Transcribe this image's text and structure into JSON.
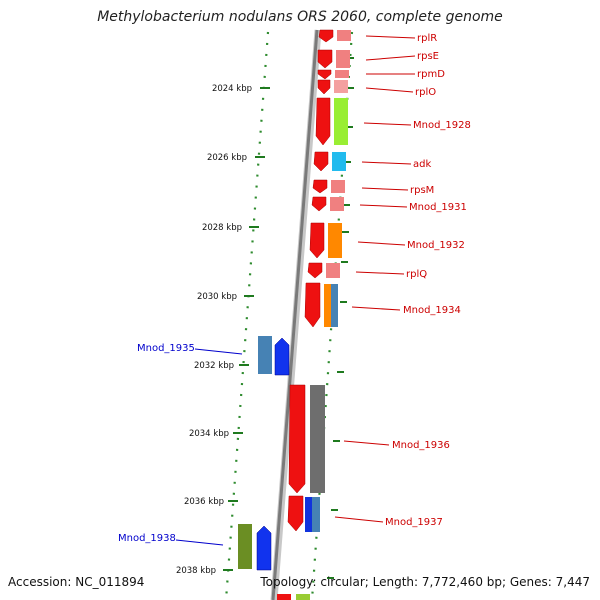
{
  "title": "Methylobacterium nodulans ORS 2060, complete genome",
  "footer": {
    "accession": "Accession: NC_011894",
    "topology": "Topology: circular; Length: 7,772,460 bp; Genes: 7,447"
  },
  "colors": {
    "ruler_dots": "#2e8b2e",
    "backbone": "#888888",
    "label_red": "#cc0000",
    "label_blue": "#0000cc"
  },
  "scale_labels": [
    "2024 kbp",
    "2026 kbp",
    "2028 kbp",
    "2030 kbp",
    "2032 kbp",
    "2034 kbp",
    "2036 kbp",
    "2038 kbp"
  ],
  "gene_labels_right": [
    "rplR",
    "rpsE",
    "rpmD",
    "rplO",
    "Mnod_1928",
    "adk",
    "rpsM",
    "Mnod_1931",
    "Mnod_1932",
    "rplQ",
    "Mnod_1934",
    "Mnod_1936",
    "Mnod_1937"
  ],
  "gene_labels_left": [
    "Mnod_1935",
    "Mnod_1938"
  ],
  "gene_color_names": [
    "red",
    "pink",
    "green",
    "light-blue",
    "orange",
    "dark-gray",
    "steel-blue",
    "blue",
    "olive"
  ]
}
